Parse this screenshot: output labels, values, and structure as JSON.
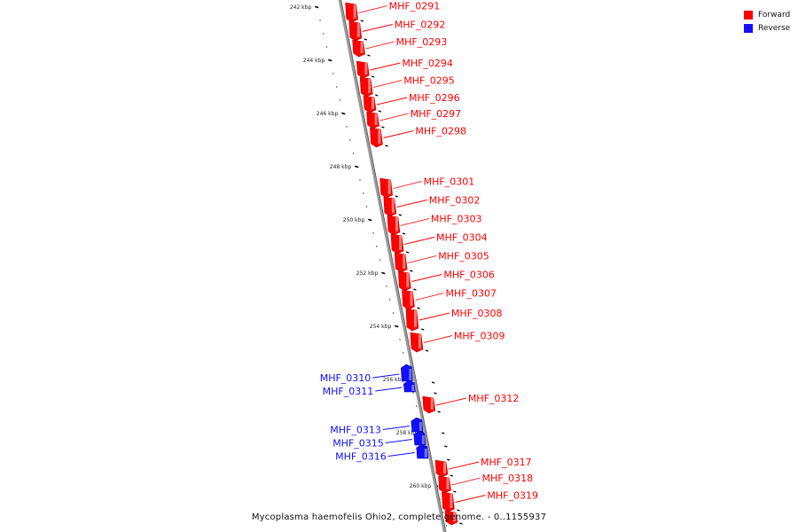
{
  "legend": {
    "forward": {
      "label": "Forward",
      "color": "#ff0000"
    },
    "reverse": {
      "label": "Reverse",
      "color": "#1010ff"
    }
  },
  "caption": "Mycoplasma haemofelis Ohio2, complete genome. - 0..1155937",
  "scale": [
    {
      "label": "242 kbp",
      "kbp": 242
    },
    {
      "label": "244 kbp",
      "kbp": 244
    },
    {
      "label": "246 kbp",
      "kbp": 246
    },
    {
      "label": "248 kbp",
      "kbp": 248
    },
    {
      "label": "250 kbp",
      "kbp": 250
    },
    {
      "label": "252 kbp",
      "kbp": 252
    },
    {
      "label": "254 kbp",
      "kbp": 254
    },
    {
      "label": "256 kbp",
      "kbp": 256
    },
    {
      "label": "258 kbp",
      "kbp": 258
    },
    {
      "label": "260 kbp",
      "kbp": 260
    }
  ],
  "genes": [
    {
      "name": "MHF_0291",
      "strand": "forward",
      "start_kbp": 241.8,
      "end_kbp": 242.5
    },
    {
      "name": "MHF_0292",
      "strand": "forward",
      "start_kbp": 242.5,
      "end_kbp": 243.2
    },
    {
      "name": "MHF_0293",
      "strand": "forward",
      "start_kbp": 243.2,
      "end_kbp": 243.8
    },
    {
      "name": "MHF_0294",
      "strand": "forward",
      "start_kbp": 244.0,
      "end_kbp": 244.6
    },
    {
      "name": "MHF_0295",
      "strand": "forward",
      "start_kbp": 244.6,
      "end_kbp": 245.3
    },
    {
      "name": "MHF_0296",
      "strand": "forward",
      "start_kbp": 245.3,
      "end_kbp": 245.9
    },
    {
      "name": "MHF_0297",
      "strand": "forward",
      "start_kbp": 245.9,
      "end_kbp": 246.5
    },
    {
      "name": "MHF_0298",
      "strand": "forward",
      "start_kbp": 246.5,
      "end_kbp": 247.2
    },
    {
      "name": "MHF_0301",
      "strand": "forward",
      "start_kbp": 248.4,
      "end_kbp": 249.1
    },
    {
      "name": "MHF_0302",
      "strand": "forward",
      "start_kbp": 249.1,
      "end_kbp": 249.8
    },
    {
      "name": "MHF_0303",
      "strand": "forward",
      "start_kbp": 249.8,
      "end_kbp": 250.5
    },
    {
      "name": "MHF_0304",
      "strand": "forward",
      "start_kbp": 250.5,
      "end_kbp": 251.2
    },
    {
      "name": "MHF_0305",
      "strand": "forward",
      "start_kbp": 251.2,
      "end_kbp": 251.9
    },
    {
      "name": "MHF_0306",
      "strand": "forward",
      "start_kbp": 251.9,
      "end_kbp": 252.6
    },
    {
      "name": "MHF_0307",
      "strand": "forward",
      "start_kbp": 252.6,
      "end_kbp": 253.3
    },
    {
      "name": "MHF_0308",
      "strand": "forward",
      "start_kbp": 253.3,
      "end_kbp": 254.1
    },
    {
      "name": "MHF_0309",
      "strand": "forward",
      "start_kbp": 254.2,
      "end_kbp": 254.9
    },
    {
      "name": "MHF_0310",
      "strand": "reverse",
      "start_kbp": 255.5,
      "end_kbp": 256.1
    },
    {
      "name": "MHF_0311",
      "strand": "reverse",
      "start_kbp": 256.1,
      "end_kbp": 256.5
    },
    {
      "name": "MHF_0312",
      "strand": "forward",
      "start_kbp": 256.6,
      "end_kbp": 257.2
    },
    {
      "name": "MHF_0313",
      "strand": "reverse",
      "start_kbp": 257.5,
      "end_kbp": 258.0
    },
    {
      "name": "MHF_0315",
      "strand": "reverse",
      "start_kbp": 258.0,
      "end_kbp": 258.5
    },
    {
      "name": "MHF_0316",
      "strand": "reverse",
      "start_kbp": 258.5,
      "end_kbp": 259.0
    },
    {
      "name": "MHF_0317",
      "strand": "forward",
      "start_kbp": 259.0,
      "end_kbp": 259.6
    },
    {
      "name": "MHF_0318",
      "strand": "forward",
      "start_kbp": 259.6,
      "end_kbp": 260.2
    },
    {
      "name": "MHF_0319",
      "strand": "forward",
      "start_kbp": 260.2,
      "end_kbp": 260.9
    },
    {
      "name": "",
      "strand": "forward",
      "start_kbp": 260.9,
      "end_kbp": 261.4
    }
  ]
}
